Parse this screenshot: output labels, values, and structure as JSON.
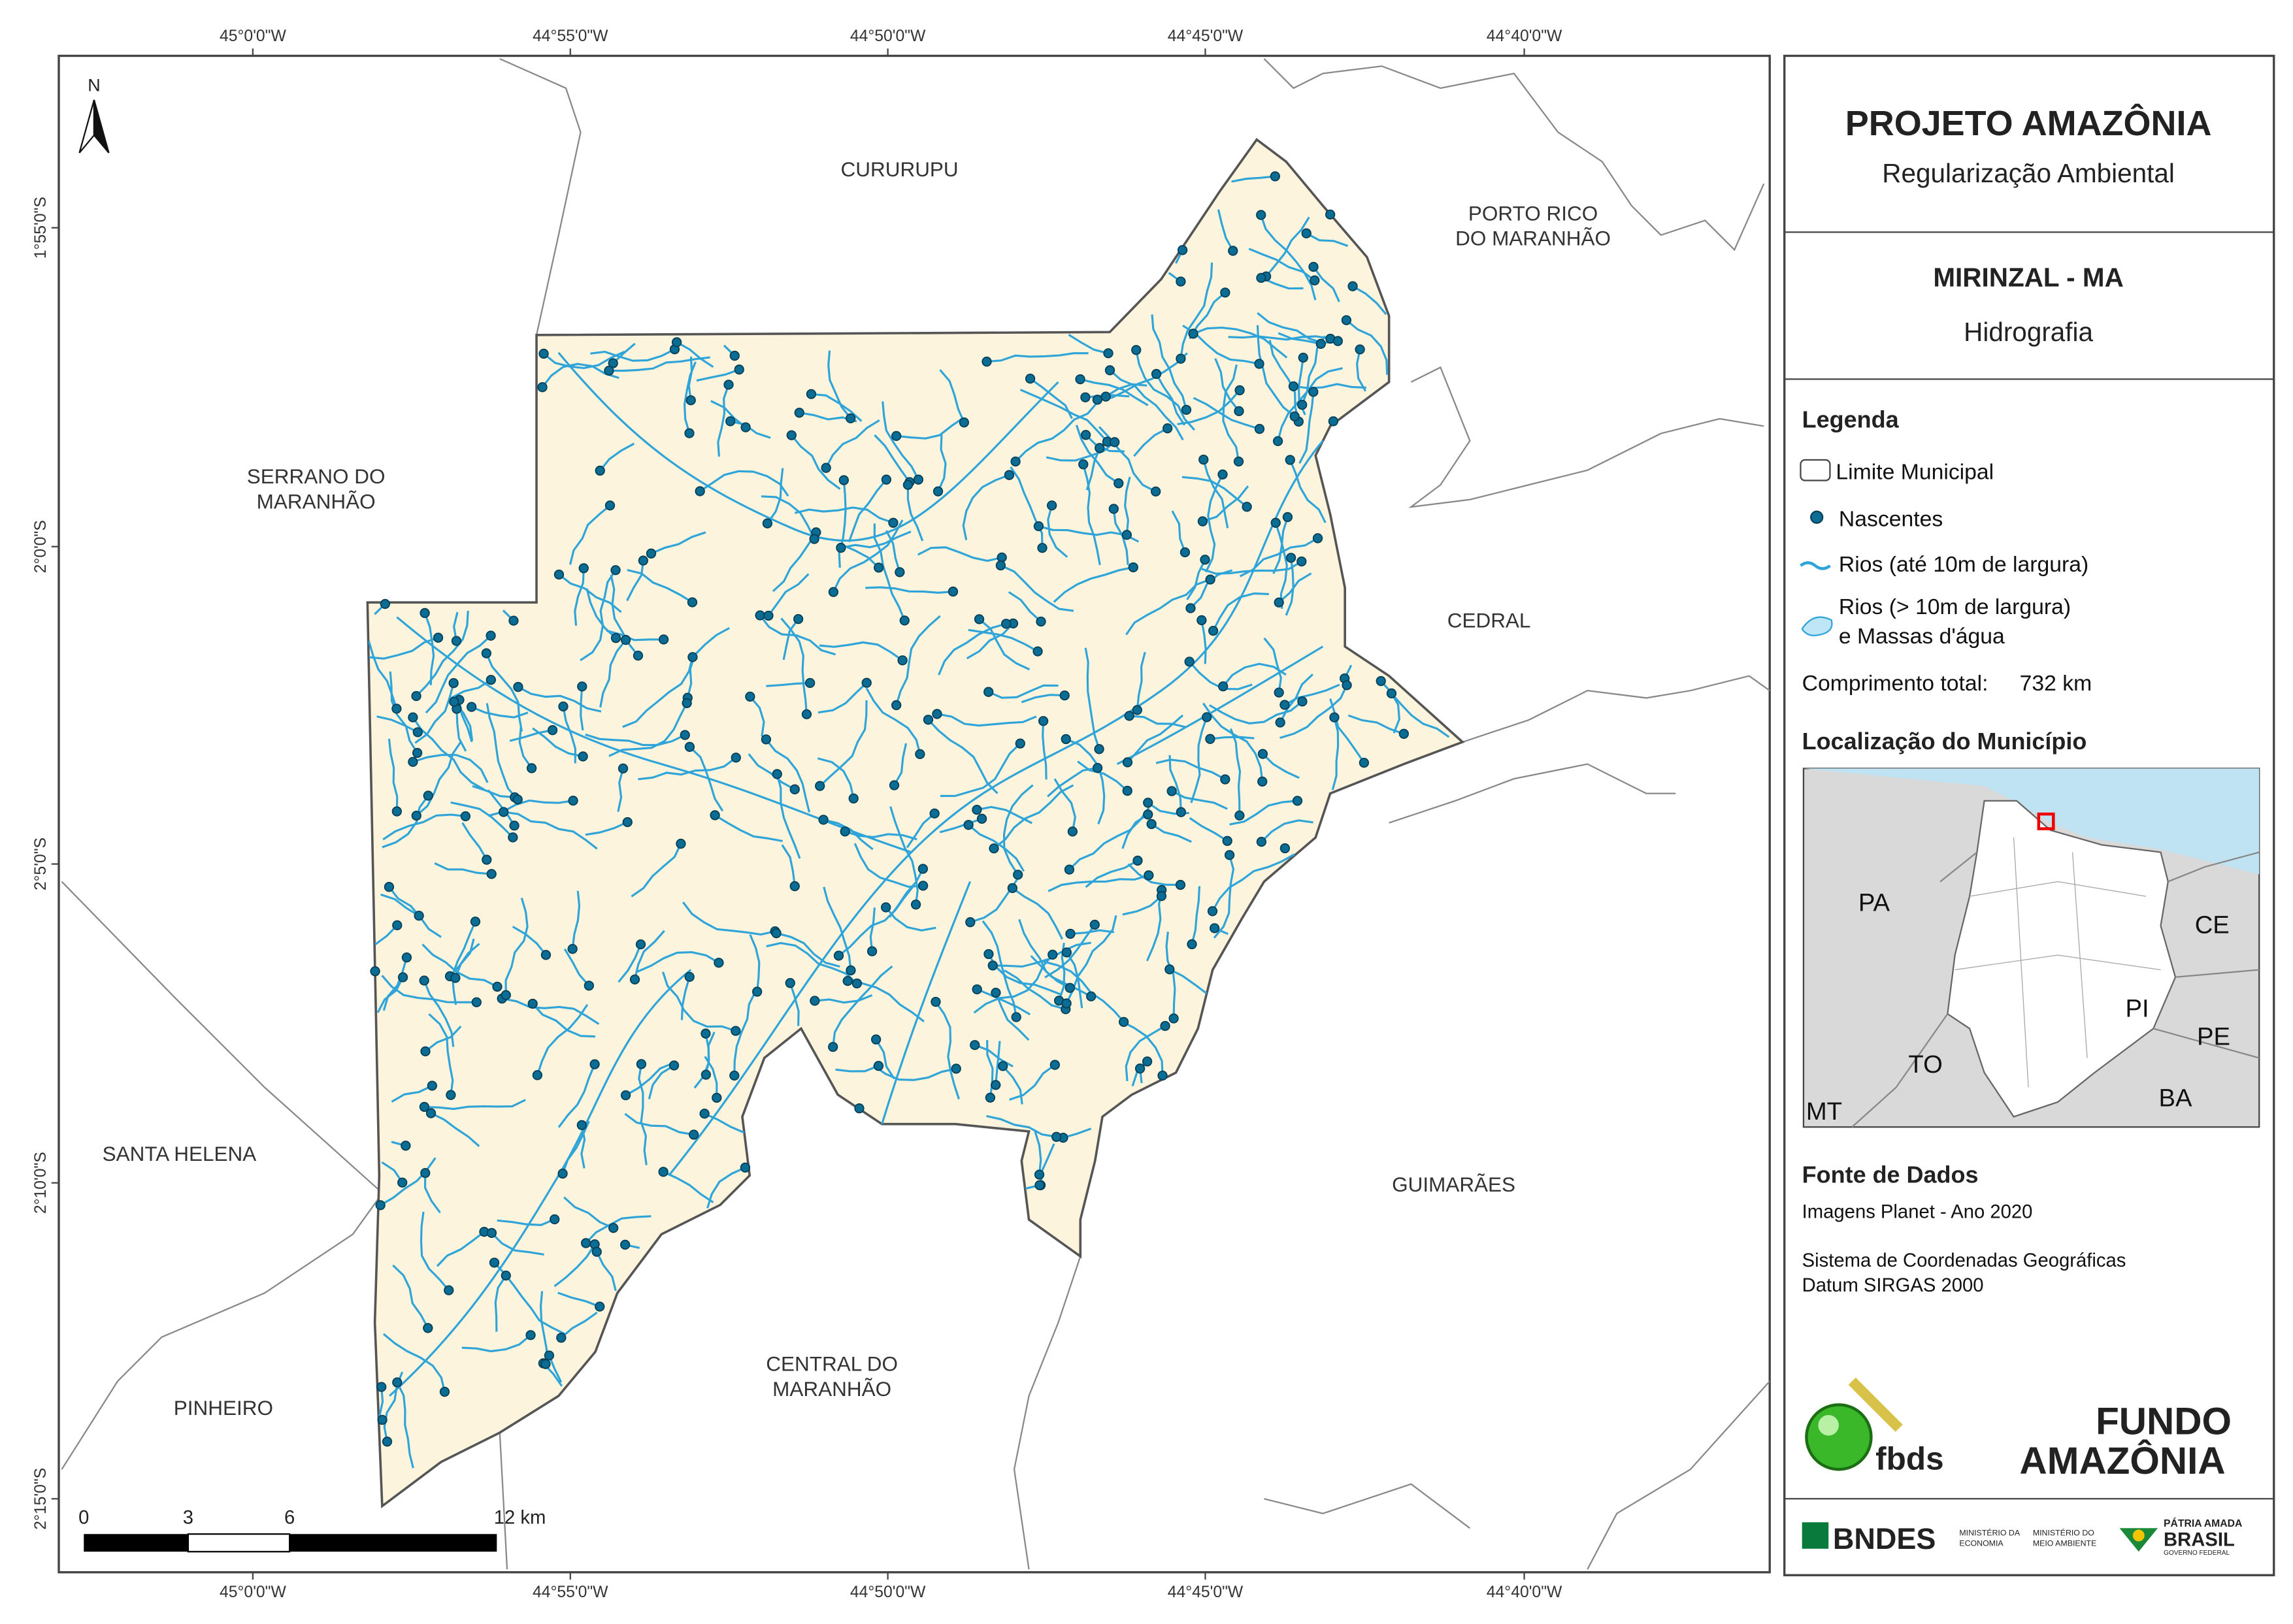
{
  "map": {
    "top_longitudes": [
      "45°0'0\"W",
      "44°55'0\"W",
      "44°50'0\"W",
      "44°45'0\"W",
      "44°40'0\"W"
    ],
    "bottom_longitudes": [
      "45°0'0\"W",
      "44°55'0\"W",
      "44°50'0\"W",
      "44°45'0\"W",
      "44°40'0\"W"
    ],
    "latitudes": [
      "1°55'0\"S",
      "2°0'0\"S",
      "2°5'0\"S",
      "2°10'0\"S",
      "2°15'0\"S"
    ],
    "north": "N",
    "neighbors": [
      [
        "CURURUPU"
      ],
      [
        "PORTO RICO",
        "DO MARANHÃO"
      ],
      [
        "SERRANO DO",
        "MARANHÃO"
      ],
      [
        "CEDRAL"
      ],
      [
        "SANTA HELENA"
      ],
      [
        "GUIMARÃES"
      ],
      [
        "CENTRAL DO",
        "MARANHÃO"
      ],
      [
        "PINHEIRO"
      ]
    ],
    "scale_bar": [
      "0",
      "3",
      "6",
      "12 km"
    ]
  },
  "panel": {
    "title": "PROJETO AMAZÔNIA",
    "subtitle": "Regularização Ambiental",
    "municipality": "MIRINZAL - MA",
    "theme": "Hidrografia",
    "legend_title": "Legenda",
    "legend_items": [
      "Limite Municipal",
      "Nascentes",
      "Rios (até 10m de largura)",
      [
        "Rios (> 10m de largura)",
        "e Massas d'água"
      ]
    ],
    "total_length_label": "Comprimento total:",
    "total_length": "732 km",
    "location_title": "Localização do Município",
    "states": [
      "PA",
      "CE",
      "PI",
      "TO",
      "PE",
      "BA",
      "MT"
    ],
    "sources_title": "Fonte de Dados",
    "sources": [
      "Imagens Planet - Ano 2020",
      "Sistema de Coordenadas Geográficas",
      "Datum SIRGAS 2000"
    ],
    "logos": [
      "fbds",
      "FUNDO",
      "AMAZÔNIA",
      "BNDES",
      [
        "MINISTÉRIO DA",
        "ECONOMIA"
      ],
      [
        "MINISTÉRIO DO",
        "MEIO AMBIENTE"
      ],
      "PÁTRIA AMADA",
      "BRASIL",
      "GOVERNO FEDERAL"
    ]
  }
}
